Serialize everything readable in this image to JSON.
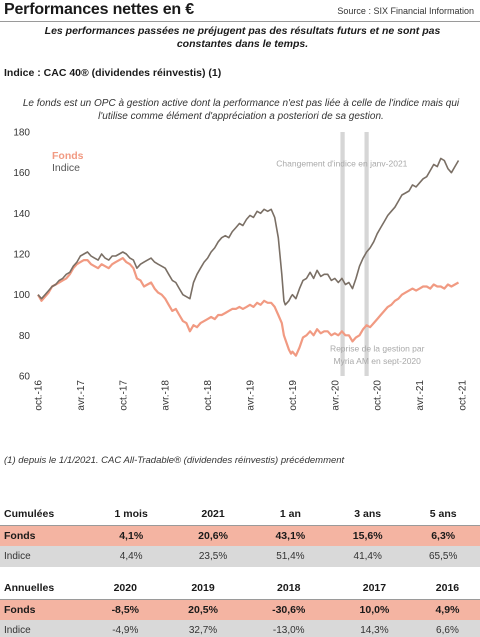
{
  "header": {
    "title": "Performances nettes en €",
    "source": "Source : SIX Financial Information"
  },
  "disclaimer": "Les performances passées ne préjugent pas des résultats futurs et ne sont pas constantes dans le temps.",
  "index_title": "Indice : CAC 40® (dividendes réinvestis) (1)",
  "fund_description": "Le fonds est un OPC à gestion active dont la performance n'est pas liée à celle de l'indice mais qui l'utilise comme élément d'appréciation a posteriori de sa gestion.",
  "footnote": "(1) depuis le 1/1/2021. CAC All-Tradable® (dividendes réinvestis) précédemment",
  "colors": {
    "fonds": "#f19a82",
    "indice": "#7a6f65",
    "bands": "#d6d6d6",
    "annotation": "#a9a9a9"
  },
  "chart_data": {
    "type": "line",
    "x_ticks": [
      "oct.-16",
      "avr.-17",
      "oct.-17",
      "avr.-18",
      "oct.-18",
      "avr.-19",
      "oct.-19",
      "avr.-20",
      "oct.-20",
      "avr.-21",
      "oct.-21"
    ],
    "ylim": [
      60,
      180
    ],
    "y_ticks": [
      60,
      80,
      100,
      120,
      140,
      160,
      180
    ],
    "annotations": [
      {
        "text": "Changement d'indice en janv-2021",
        "at_month": 43,
        "y": 163
      },
      {
        "text": "Reprise de la gestion par",
        "at_month": 48,
        "y": 72
      },
      {
        "text": "Myria AM en sept-2020",
        "at_month": 48,
        "y": 66
      }
    ],
    "bands": [
      {
        "from_month": 42.8,
        "to_month": 43.4
      },
      {
        "from_month": 46.2,
        "to_month": 46.8
      }
    ],
    "series": [
      {
        "name": "Fonds",
        "points": [
          [
            0,
            100
          ],
          [
            0.5,
            97
          ],
          [
            1,
            99
          ],
          [
            1.5,
            101
          ],
          [
            2,
            104
          ],
          [
            2.5,
            105
          ],
          [
            3,
            106
          ],
          [
            3.5,
            107
          ],
          [
            4,
            108
          ],
          [
            4.5,
            110
          ],
          [
            5,
            113
          ],
          [
            5.5,
            115
          ],
          [
            6,
            116
          ],
          [
            6.5,
            117
          ],
          [
            7,
            117
          ],
          [
            7.5,
            115
          ],
          [
            8,
            114
          ],
          [
            8.5,
            113
          ],
          [
            9,
            115
          ],
          [
            9.5,
            114
          ],
          [
            10,
            113
          ],
          [
            10.5,
            115
          ],
          [
            11,
            116
          ],
          [
            11.5,
            117
          ],
          [
            12,
            118
          ],
          [
            12.5,
            116
          ],
          [
            13,
            115
          ],
          [
            13.5,
            113
          ],
          [
            14,
            108
          ],
          [
            14.5,
            107
          ],
          [
            15,
            104
          ],
          [
            15.5,
            105
          ],
          [
            16,
            106
          ],
          [
            16.5,
            103
          ],
          [
            17,
            101
          ],
          [
            17.5,
            100
          ],
          [
            18,
            98
          ],
          [
            18.5,
            95
          ],
          [
            19,
            92
          ],
          [
            19.5,
            93
          ],
          [
            20,
            90
          ],
          [
            20.5,
            87
          ],
          [
            21,
            86
          ],
          [
            21.5,
            82
          ],
          [
            22,
            85
          ],
          [
            22.5,
            84
          ],
          [
            23,
            86
          ],
          [
            23.5,
            87
          ],
          [
            24,
            88
          ],
          [
            24.5,
            89
          ],
          [
            25,
            88
          ],
          [
            25.5,
            90
          ],
          [
            26,
            90
          ],
          [
            26.5,
            91
          ],
          [
            27,
            92
          ],
          [
            27.5,
            93
          ],
          [
            28,
            93
          ],
          [
            28.5,
            94
          ],
          [
            29,
            93
          ],
          [
            29.5,
            94
          ],
          [
            30,
            95
          ],
          [
            30.5,
            94
          ],
          [
            31,
            96
          ],
          [
            31.5,
            95
          ],
          [
            32,
            97
          ],
          [
            32.5,
            96
          ],
          [
            33,
            96
          ],
          [
            33.5,
            94
          ],
          [
            34,
            90
          ],
          [
            34.5,
            86
          ],
          [
            34.8,
            80
          ],
          [
            35,
            78
          ],
          [
            35.5,
            73
          ],
          [
            35.8,
            71
          ],
          [
            36,
            72
          ],
          [
            36.5,
            70
          ],
          [
            37,
            74
          ],
          [
            37.5,
            79
          ],
          [
            38,
            80
          ],
          [
            38.5,
            82
          ],
          [
            39,
            80
          ],
          [
            39.5,
            83
          ],
          [
            40,
            81
          ],
          [
            40.5,
            82
          ],
          [
            41,
            82
          ],
          [
            41.5,
            80
          ],
          [
            42,
            81
          ],
          [
            42.5,
            80
          ],
          [
            43,
            82
          ],
          [
            43.5,
            80
          ],
          [
            44,
            80
          ],
          [
            44.5,
            77
          ],
          [
            45,
            79
          ],
          [
            45.5,
            80
          ],
          [
            46,
            83
          ],
          [
            46.5,
            85
          ],
          [
            47,
            84
          ],
          [
            47.5,
            86
          ],
          [
            48,
            88
          ],
          [
            48.5,
            90
          ],
          [
            49,
            92
          ],
          [
            49.5,
            94
          ],
          [
            50,
            95
          ],
          [
            50.5,
            97
          ],
          [
            51,
            98
          ],
          [
            51.5,
            100
          ],
          [
            52,
            101
          ],
          [
            52.5,
            102
          ],
          [
            53,
            103
          ],
          [
            53.5,
            102
          ],
          [
            54,
            103
          ],
          [
            54.5,
            104
          ],
          [
            55,
            104
          ],
          [
            55.5,
            103
          ],
          [
            56,
            105
          ],
          [
            56.5,
            104
          ],
          [
            57,
            104
          ],
          [
            57.5,
            103
          ],
          [
            58,
            105
          ],
          [
            58.5,
            104
          ],
          [
            59,
            105
          ],
          [
            59.5,
            106
          ]
        ]
      },
      {
        "name": "Indice",
        "points": [
          [
            0,
            100
          ],
          [
            0.5,
            98
          ],
          [
            1,
            100
          ],
          [
            1.5,
            102
          ],
          [
            2,
            104
          ],
          [
            2.5,
            105
          ],
          [
            3,
            107
          ],
          [
            3.5,
            108
          ],
          [
            4,
            110
          ],
          [
            4.5,
            111
          ],
          [
            5,
            114
          ],
          [
            5.5,
            116
          ],
          [
            6,
            119
          ],
          [
            6.5,
            120
          ],
          [
            7,
            121
          ],
          [
            7.5,
            119
          ],
          [
            8,
            118
          ],
          [
            8.5,
            117
          ],
          [
            9,
            120
          ],
          [
            9.5,
            118
          ],
          [
            10,
            117
          ],
          [
            10.5,
            119
          ],
          [
            11,
            119
          ],
          [
            11.5,
            120
          ],
          [
            12,
            121
          ],
          [
            12.5,
            120
          ],
          [
            13,
            118
          ],
          [
            13.5,
            117
          ],
          [
            14,
            113
          ],
          [
            14.5,
            115
          ],
          [
            15,
            116
          ],
          [
            15.5,
            117
          ],
          [
            16,
            118
          ],
          [
            16.5,
            116
          ],
          [
            17,
            115
          ],
          [
            17.5,
            114
          ],
          [
            18,
            113
          ],
          [
            18.5,
            110
          ],
          [
            19,
            107
          ],
          [
            19.5,
            106
          ],
          [
            20,
            103
          ],
          [
            20.5,
            100
          ],
          [
            21,
            99
          ],
          [
            21.5,
            98
          ],
          [
            22,
            106
          ],
          [
            22.5,
            110
          ],
          [
            23,
            113
          ],
          [
            23.5,
            116
          ],
          [
            24,
            118
          ],
          [
            24.5,
            121
          ],
          [
            25,
            123
          ],
          [
            25.5,
            126
          ],
          [
            26,
            128
          ],
          [
            26.5,
            129
          ],
          [
            27,
            128
          ],
          [
            27.5,
            131
          ],
          [
            28,
            133
          ],
          [
            28.5,
            135
          ],
          [
            29,
            134
          ],
          [
            29.5,
            137
          ],
          [
            30,
            139
          ],
          [
            30.5,
            138
          ],
          [
            31,
            141
          ],
          [
            31.5,
            140
          ],
          [
            32,
            142
          ],
          [
            32.5,
            141
          ],
          [
            33,
            142
          ],
          [
            33.5,
            138
          ],
          [
            34,
            128
          ],
          [
            34.5,
            110
          ],
          [
            34.8,
            97
          ],
          [
            35,
            95
          ],
          [
            35.5,
            97
          ],
          [
            35.8,
            99
          ],
          [
            36,
            100
          ],
          [
            36.5,
            98
          ],
          [
            37,
            103
          ],
          [
            37.5,
            107
          ],
          [
            38,
            108
          ],
          [
            38.5,
            111
          ],
          [
            39,
            108
          ],
          [
            39.5,
            112
          ],
          [
            40,
            109
          ],
          [
            40.5,
            110
          ],
          [
            41,
            110
          ],
          [
            41.5,
            107
          ],
          [
            42,
            108
          ],
          [
            42.5,
            106
          ],
          [
            43,
            108
          ],
          [
            43.5,
            105
          ],
          [
            44,
            106
          ],
          [
            44.5,
            103
          ],
          [
            45,
            108
          ],
          [
            45.5,
            114
          ],
          [
            46,
            118
          ],
          [
            46.5,
            121
          ],
          [
            47,
            123
          ],
          [
            47.5,
            126
          ],
          [
            48,
            130
          ],
          [
            48.5,
            133
          ],
          [
            49,
            136
          ],
          [
            49.5,
            139
          ],
          [
            50,
            141
          ],
          [
            50.5,
            143
          ],
          [
            51,
            146
          ],
          [
            51.5,
            149
          ],
          [
            52,
            150
          ],
          [
            52.5,
            151
          ],
          [
            53,
            154
          ],
          [
            53.5,
            153
          ],
          [
            54,
            155
          ],
          [
            54.5,
            157
          ],
          [
            55,
            158
          ],
          [
            55.5,
            161
          ],
          [
            56,
            164
          ],
          [
            56.5,
            163
          ],
          [
            57,
            167
          ],
          [
            57.5,
            166
          ],
          [
            58,
            162
          ],
          [
            58.5,
            160
          ],
          [
            59,
            163
          ],
          [
            59.5,
            166
          ]
        ]
      }
    ]
  },
  "cumulative": {
    "header": [
      "Cumulées",
      "1 mois",
      "2021",
      "1 an",
      "3 ans",
      "5 ans"
    ],
    "fonds": [
      "Fonds",
      "4,1%",
      "20,6%",
      "43,1%",
      "15,6%",
      "6,3%"
    ],
    "indice": [
      "Indice",
      "4,4%",
      "23,5%",
      "51,4%",
      "41,4%",
      "65,5%"
    ]
  },
  "annual": {
    "header": [
      "Annuelles",
      "2020",
      "2019",
      "2018",
      "2017",
      "2016"
    ],
    "fonds": [
      "Fonds",
      "-8,5%",
      "20,5%",
      "-30,6%",
      "10,0%",
      "4,9%"
    ],
    "indice": [
      "Indice",
      "-4,9%",
      "32,7%",
      "-13,0%",
      "14,3%",
      "6,6%"
    ]
  }
}
